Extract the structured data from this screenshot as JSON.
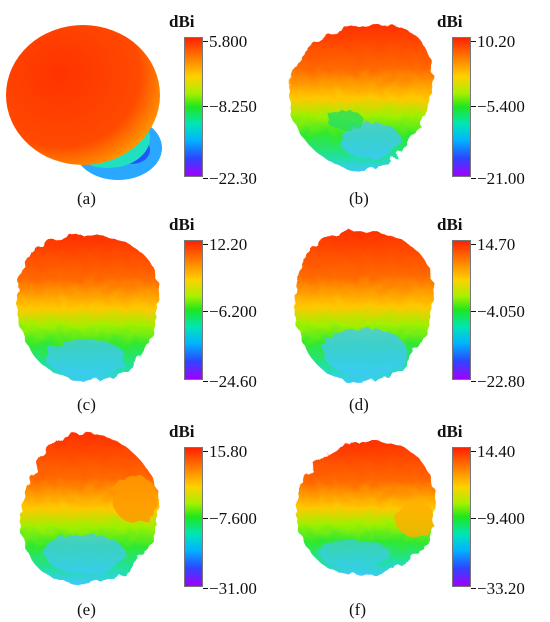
{
  "panels": [
    {
      "caption": "(a)",
      "unit": "dBi",
      "max": "5.800",
      "mid": "−8.250",
      "min": "−22.30"
    },
    {
      "caption": "(b)",
      "unit": "dBi",
      "max": "10.20",
      "mid": "−5.400",
      "min": "−21.00"
    },
    {
      "caption": "(c)",
      "unit": "dBi",
      "max": "12.20",
      "mid": "−6.200",
      "min": "−24.60"
    },
    {
      "caption": "(d)",
      "unit": "dBi",
      "max": "14.70",
      "mid": "−4.050",
      "min": "−22.80"
    },
    {
      "caption": "(e)",
      "unit": "dBi",
      "max": "15.80",
      "mid": "−7.600",
      "min": "−31.00"
    },
    {
      "caption": "(f)",
      "unit": "dBi",
      "max": "14.40",
      "mid": "−9.400",
      "min": "−33.20"
    }
  ]
}
